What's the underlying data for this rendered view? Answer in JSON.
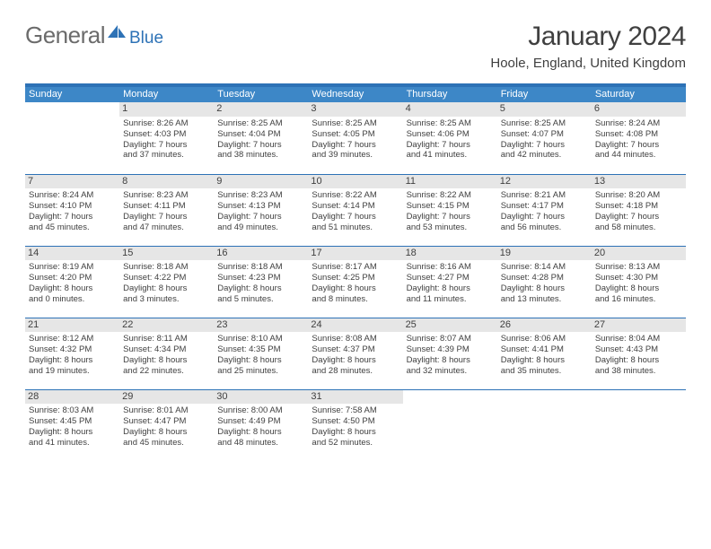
{
  "brand": {
    "word1": "General",
    "word2": "Blue"
  },
  "colors": {
    "header_bg": "#3d87c7",
    "accent": "#2d72b6",
    "daynum_bg": "#e6e6e6",
    "text": "#404040",
    "page_bg": "#ffffff"
  },
  "title": "January 2024",
  "location": "Hoole, England, United Kingdom",
  "day_headers": [
    "Sunday",
    "Monday",
    "Tuesday",
    "Wednesday",
    "Thursday",
    "Friday",
    "Saturday"
  ],
  "weeks": [
    [
      null,
      {
        "n": "1",
        "sr": "Sunrise: 8:26 AM",
        "ss": "Sunset: 4:03 PM",
        "d1": "Daylight: 7 hours",
        "d2": "and 37 minutes."
      },
      {
        "n": "2",
        "sr": "Sunrise: 8:25 AM",
        "ss": "Sunset: 4:04 PM",
        "d1": "Daylight: 7 hours",
        "d2": "and 38 minutes."
      },
      {
        "n": "3",
        "sr": "Sunrise: 8:25 AM",
        "ss": "Sunset: 4:05 PM",
        "d1": "Daylight: 7 hours",
        "d2": "and 39 minutes."
      },
      {
        "n": "4",
        "sr": "Sunrise: 8:25 AM",
        "ss": "Sunset: 4:06 PM",
        "d1": "Daylight: 7 hours",
        "d2": "and 41 minutes."
      },
      {
        "n": "5",
        "sr": "Sunrise: 8:25 AM",
        "ss": "Sunset: 4:07 PM",
        "d1": "Daylight: 7 hours",
        "d2": "and 42 minutes."
      },
      {
        "n": "6",
        "sr": "Sunrise: 8:24 AM",
        "ss": "Sunset: 4:08 PM",
        "d1": "Daylight: 7 hours",
        "d2": "and 44 minutes."
      }
    ],
    [
      {
        "n": "7",
        "sr": "Sunrise: 8:24 AM",
        "ss": "Sunset: 4:10 PM",
        "d1": "Daylight: 7 hours",
        "d2": "and 45 minutes."
      },
      {
        "n": "8",
        "sr": "Sunrise: 8:23 AM",
        "ss": "Sunset: 4:11 PM",
        "d1": "Daylight: 7 hours",
        "d2": "and 47 minutes."
      },
      {
        "n": "9",
        "sr": "Sunrise: 8:23 AM",
        "ss": "Sunset: 4:13 PM",
        "d1": "Daylight: 7 hours",
        "d2": "and 49 minutes."
      },
      {
        "n": "10",
        "sr": "Sunrise: 8:22 AM",
        "ss": "Sunset: 4:14 PM",
        "d1": "Daylight: 7 hours",
        "d2": "and 51 minutes."
      },
      {
        "n": "11",
        "sr": "Sunrise: 8:22 AM",
        "ss": "Sunset: 4:15 PM",
        "d1": "Daylight: 7 hours",
        "d2": "and 53 minutes."
      },
      {
        "n": "12",
        "sr": "Sunrise: 8:21 AM",
        "ss": "Sunset: 4:17 PM",
        "d1": "Daylight: 7 hours",
        "d2": "and 56 minutes."
      },
      {
        "n": "13",
        "sr": "Sunrise: 8:20 AM",
        "ss": "Sunset: 4:18 PM",
        "d1": "Daylight: 7 hours",
        "d2": "and 58 minutes."
      }
    ],
    [
      {
        "n": "14",
        "sr": "Sunrise: 8:19 AM",
        "ss": "Sunset: 4:20 PM",
        "d1": "Daylight: 8 hours",
        "d2": "and 0 minutes."
      },
      {
        "n": "15",
        "sr": "Sunrise: 8:18 AM",
        "ss": "Sunset: 4:22 PM",
        "d1": "Daylight: 8 hours",
        "d2": "and 3 minutes."
      },
      {
        "n": "16",
        "sr": "Sunrise: 8:18 AM",
        "ss": "Sunset: 4:23 PM",
        "d1": "Daylight: 8 hours",
        "d2": "and 5 minutes."
      },
      {
        "n": "17",
        "sr": "Sunrise: 8:17 AM",
        "ss": "Sunset: 4:25 PM",
        "d1": "Daylight: 8 hours",
        "d2": "and 8 minutes."
      },
      {
        "n": "18",
        "sr": "Sunrise: 8:16 AM",
        "ss": "Sunset: 4:27 PM",
        "d1": "Daylight: 8 hours",
        "d2": "and 11 minutes."
      },
      {
        "n": "19",
        "sr": "Sunrise: 8:14 AM",
        "ss": "Sunset: 4:28 PM",
        "d1": "Daylight: 8 hours",
        "d2": "and 13 minutes."
      },
      {
        "n": "20",
        "sr": "Sunrise: 8:13 AM",
        "ss": "Sunset: 4:30 PM",
        "d1": "Daylight: 8 hours",
        "d2": "and 16 minutes."
      }
    ],
    [
      {
        "n": "21",
        "sr": "Sunrise: 8:12 AM",
        "ss": "Sunset: 4:32 PM",
        "d1": "Daylight: 8 hours",
        "d2": "and 19 minutes."
      },
      {
        "n": "22",
        "sr": "Sunrise: 8:11 AM",
        "ss": "Sunset: 4:34 PM",
        "d1": "Daylight: 8 hours",
        "d2": "and 22 minutes."
      },
      {
        "n": "23",
        "sr": "Sunrise: 8:10 AM",
        "ss": "Sunset: 4:35 PM",
        "d1": "Daylight: 8 hours",
        "d2": "and 25 minutes."
      },
      {
        "n": "24",
        "sr": "Sunrise: 8:08 AM",
        "ss": "Sunset: 4:37 PM",
        "d1": "Daylight: 8 hours",
        "d2": "and 28 minutes."
      },
      {
        "n": "25",
        "sr": "Sunrise: 8:07 AM",
        "ss": "Sunset: 4:39 PM",
        "d1": "Daylight: 8 hours",
        "d2": "and 32 minutes."
      },
      {
        "n": "26",
        "sr": "Sunrise: 8:06 AM",
        "ss": "Sunset: 4:41 PM",
        "d1": "Daylight: 8 hours",
        "d2": "and 35 minutes."
      },
      {
        "n": "27",
        "sr": "Sunrise: 8:04 AM",
        "ss": "Sunset: 4:43 PM",
        "d1": "Daylight: 8 hours",
        "d2": "and 38 minutes."
      }
    ],
    [
      {
        "n": "28",
        "sr": "Sunrise: 8:03 AM",
        "ss": "Sunset: 4:45 PM",
        "d1": "Daylight: 8 hours",
        "d2": "and 41 minutes."
      },
      {
        "n": "29",
        "sr": "Sunrise: 8:01 AM",
        "ss": "Sunset: 4:47 PM",
        "d1": "Daylight: 8 hours",
        "d2": "and 45 minutes."
      },
      {
        "n": "30",
        "sr": "Sunrise: 8:00 AM",
        "ss": "Sunset: 4:49 PM",
        "d1": "Daylight: 8 hours",
        "d2": "and 48 minutes."
      },
      {
        "n": "31",
        "sr": "Sunrise: 7:58 AM",
        "ss": "Sunset: 4:50 PM",
        "d1": "Daylight: 8 hours",
        "d2": "and 52 minutes."
      },
      null,
      null,
      null
    ]
  ]
}
